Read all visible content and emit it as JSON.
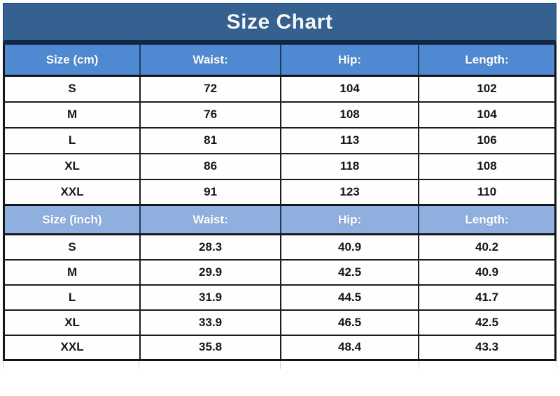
{
  "title": "Size Chart",
  "colors": {
    "title_bar_bg": "#34618f",
    "cm_header_bg": "#4e89d1",
    "inch_header_bg": "#8fafdf",
    "header_text": "#ffffff",
    "data_text": "#15161a",
    "border_dark": "#15161a",
    "header_border_navy": "#1d3a60"
  },
  "chart_data": [
    {
      "type": "table",
      "title": "Size Chart",
      "unit": "cm",
      "columns": [
        "Size (cm)",
        "Waist:",
        "Hip:",
        "Length:"
      ],
      "rows": [
        [
          "S",
          "72",
          "104",
          "102"
        ],
        [
          "M",
          "76",
          "108",
          "104"
        ],
        [
          "L",
          "81",
          "113",
          "106"
        ],
        [
          "XL",
          "86",
          "118",
          "108"
        ],
        [
          "XXL",
          "91",
          "123",
          "110"
        ]
      ]
    },
    {
      "type": "table",
      "title": "Size Chart",
      "unit": "inch",
      "columns": [
        "Size (inch)",
        "Waist:",
        "Hip:",
        "Length:"
      ],
      "rows": [
        [
          "S",
          "28.3",
          "40.9",
          "40.2"
        ],
        [
          "M",
          "29.9",
          "42.5",
          "40.9"
        ],
        [
          "L",
          "31.9",
          "44.5",
          "41.7"
        ],
        [
          "XL",
          "33.9",
          "46.5",
          "42.5"
        ],
        [
          "XXL",
          "35.8",
          "48.4",
          "43.3"
        ]
      ]
    }
  ]
}
